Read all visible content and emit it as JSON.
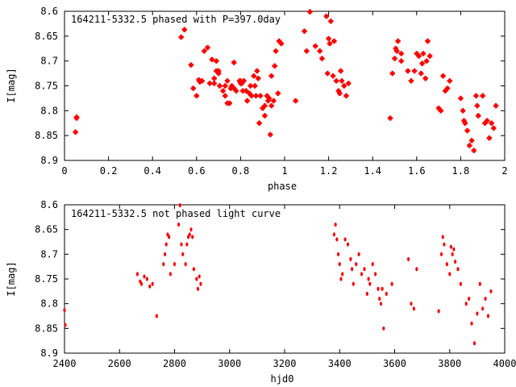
{
  "chart_data": [
    {
      "type": "scatter",
      "title": "164211-5332.5 phased with P=397.0day",
      "xlabel": "phase",
      "ylabel": "I[mag]",
      "xlim": [
        0,
        2
      ],
      "ylim": [
        8.6,
        8.9
      ],
      "y_inverted": true,
      "x_ticks": [
        0,
        0.2,
        0.4,
        0.6,
        0.8,
        1,
        1.2,
        1.4,
        1.6,
        1.8,
        2
      ],
      "x_tick_labels": [
        "0",
        "0.2",
        "0.4",
        "0.6",
        "0.8",
        "1",
        "1.2",
        "1.4",
        "1.6",
        "1.8",
        "2"
      ],
      "y_ticks": [
        8.6,
        8.65,
        8.7,
        8.75,
        8.8,
        8.85,
        8.9
      ],
      "y_tick_labels": [
        "8.6",
        "8.65",
        "8.7",
        "8.75",
        "8.8",
        "8.85",
        "8.9"
      ],
      "marker_color": "#ff0000",
      "x": [
        0.05,
        0.055,
        0.055,
        0.53,
        0.545,
        0.575,
        0.585,
        0.6,
        0.61,
        0.615,
        0.625,
        0.635,
        0.65,
        0.66,
        0.67,
        0.68,
        0.68,
        0.69,
        0.69,
        0.7,
        0.7,
        0.705,
        0.72,
        0.73,
        0.73,
        0.74,
        0.74,
        0.75,
        0.755,
        0.76,
        0.77,
        0.77,
        0.78,
        0.795,
        0.8,
        0.8,
        0.805,
        0.81,
        0.815,
        0.825,
        0.83,
        0.84,
        0.845,
        0.85,
        0.86,
        0.865,
        0.87,
        0.875,
        0.88,
        0.885,
        0.89,
        0.9,
        0.91,
        0.91,
        0.92,
        0.925,
        0.93,
        0.935,
        0.94,
        0.94,
        0.95,
        0.955,
        0.96,
        0.97,
        0.975,
        0.985,
        1.05,
        1.09,
        1.1,
        1.115,
        1.14,
        1.16,
        1.17,
        1.19,
        1.195,
        1.2,
        1.205,
        1.21,
        1.22,
        1.225,
        1.235,
        1.245,
        1.25,
        1.255,
        1.26,
        1.27,
        1.28,
        1.29,
        1.48,
        1.49,
        1.5,
        1.505,
        1.51,
        1.515,
        1.53,
        1.53,
        1.56,
        1.575,
        1.59,
        1.6,
        1.61,
        1.62,
        1.625,
        1.63,
        1.64,
        1.645,
        1.65,
        1.66,
        1.7,
        1.71,
        1.72,
        1.73,
        1.74,
        1.75,
        1.8,
        1.81,
        1.815,
        1.82,
        1.83,
        1.84,
        1.85,
        1.86,
        1.87,
        1.875,
        1.88,
        1.9,
        1.91,
        1.92,
        1.93,
        1.94,
        1.95,
        1.96
      ],
      "y": [
        8.843,
        8.813,
        8.815,
        8.652,
        8.637,
        8.708,
        8.755,
        8.77,
        8.738,
        8.742,
        8.74,
        8.68,
        8.673,
        8.745,
        8.697,
        8.735,
        8.745,
        8.7,
        8.72,
        8.725,
        8.72,
        8.75,
        8.76,
        8.75,
        8.77,
        8.785,
        8.74,
        8.785,
        8.755,
        8.75,
        8.755,
        8.703,
        8.76,
        8.74,
        8.745,
        8.74,
        8.745,
        8.76,
        8.74,
        8.76,
        8.78,
        8.765,
        8.75,
        8.77,
        8.73,
        8.75,
        8.77,
        8.72,
        8.735,
        8.825,
        8.77,
        8.795,
        8.79,
        8.81,
        8.77,
        8.78,
        8.775,
        8.848,
        8.79,
        8.73,
        8.78,
        8.71,
        8.68,
        8.765,
        8.66,
        8.665,
        8.78,
        8.64,
        8.68,
        8.601,
        8.67,
        8.68,
        8.695,
        8.61,
        8.725,
        8.655,
        8.665,
        8.62,
        8.73,
        8.66,
        8.74,
        8.76,
        8.765,
        8.72,
        8.74,
        8.75,
        8.77,
        8.745,
        8.815,
        8.725,
        8.695,
        8.675,
        8.68,
        8.66,
        8.685,
        8.7,
        8.72,
        8.74,
        8.72,
        8.685,
        8.69,
        8.725,
        8.705,
        8.685,
        8.735,
        8.7,
        8.66,
        8.69,
        8.795,
        8.8,
        8.73,
        8.76,
        8.755,
        8.74,
        8.775,
        8.8,
        8.82,
        8.825,
        8.84,
        8.87,
        8.86,
        8.88,
        8.77,
        8.79,
        8.81,
        8.77,
        8.825,
        8.82,
        8.855,
        8.825,
        8.835,
        8.79
      ]
    },
    {
      "type": "scatter",
      "title": "164211-5332.5 not phased light curve",
      "xlabel": "hjd0",
      "ylabel": "I[mag]",
      "xlim": [
        2400,
        4000
      ],
      "ylim": [
        8.6,
        8.9
      ],
      "y_inverted": true,
      "x_ticks": [
        2400,
        2600,
        2800,
        3000,
        3200,
        3400,
        3600,
        3800,
        4000
      ],
      "x_tick_labels": [
        "2400",
        "2600",
        "2800",
        "3000",
        "3200",
        "3400",
        "3600",
        "3800",
        "4000"
      ],
      "y_ticks": [
        8.6,
        8.65,
        8.7,
        8.75,
        8.8,
        8.85,
        8.9
      ],
      "y_tick_labels": [
        "8.6",
        "8.65",
        "8.7",
        "8.75",
        "8.8",
        "8.85",
        "8.9"
      ],
      "marker_color": "#ff0000",
      "x": [
        2400,
        2403,
        2665,
        2675,
        2680,
        2690,
        2700,
        2710,
        2720,
        2735,
        2760,
        2765,
        2770,
        2775,
        2780,
        2785,
        2800,
        2815,
        2820,
        2825,
        2830,
        2840,
        2845,
        2850,
        2855,
        2860,
        2865,
        2870,
        2880,
        2885,
        2890,
        2895,
        3380,
        3385,
        3390,
        3395,
        3400,
        3405,
        3410,
        3420,
        3430,
        3440,
        3445,
        3450,
        3460,
        3470,
        3480,
        3490,
        3500,
        3505,
        3510,
        3520,
        3530,
        3540,
        3545,
        3550,
        3555,
        3560,
        3570,
        3590,
        3650,
        3660,
        3670,
        3680,
        3760,
        3770,
        3775,
        3780,
        3790,
        3800,
        3805,
        3810,
        3815,
        3820,
        3830,
        3840,
        3860,
        3870,
        3880,
        3890,
        3900,
        3910,
        3920,
        3930,
        3940,
        3950
      ],
      "y": [
        8.813,
        8.843,
        8.74,
        8.755,
        8.76,
        8.745,
        8.75,
        8.765,
        8.76,
        8.825,
        8.72,
        8.7,
        8.68,
        8.66,
        8.665,
        8.74,
        8.72,
        8.64,
        8.601,
        8.68,
        8.7,
        8.72,
        8.68,
        8.665,
        8.66,
        8.65,
        8.665,
        8.73,
        8.75,
        8.77,
        8.745,
        8.76,
        8.66,
        8.64,
        8.67,
        8.7,
        8.72,
        8.75,
        8.74,
        8.67,
        8.68,
        8.71,
        8.73,
        8.76,
        8.72,
        8.7,
        8.74,
        8.73,
        8.78,
        8.75,
        8.76,
        8.72,
        8.74,
        8.77,
        8.79,
        8.8,
        8.77,
        8.85,
        8.78,
        8.76,
        8.71,
        8.8,
        8.81,
        8.73,
        8.815,
        8.7,
        8.665,
        8.68,
        8.72,
        8.74,
        8.685,
        8.7,
        8.69,
        8.715,
        8.73,
        8.76,
        8.8,
        8.79,
        8.84,
        8.88,
        8.82,
        8.76,
        8.81,
        8.79,
        8.825,
        8.775
      ]
    }
  ]
}
